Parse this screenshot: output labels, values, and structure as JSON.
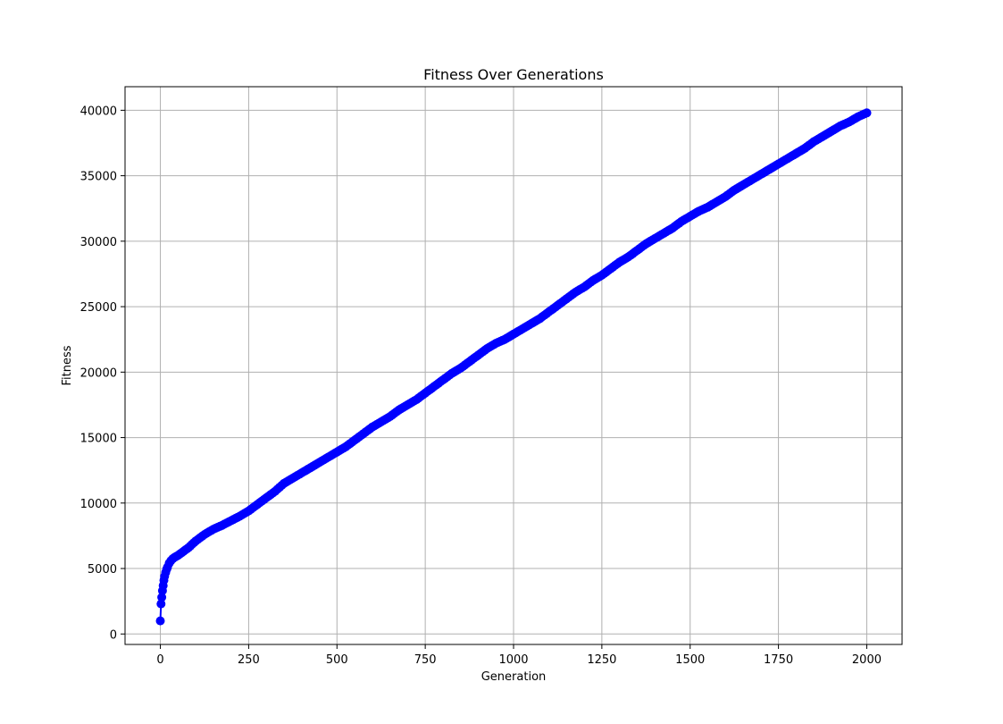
{
  "chart_data": {
    "type": "line",
    "title": "Fitness Over Generations",
    "xlabel": "Generation",
    "ylabel": "Fitness",
    "xlim": [
      -100,
      2100
    ],
    "ylim": [
      -800,
      41800
    ],
    "xticks": [
      0,
      250,
      500,
      750,
      1000,
      1250,
      1500,
      1750,
      2000
    ],
    "yticks": [
      0,
      5000,
      10000,
      15000,
      20000,
      25000,
      30000,
      35000,
      40000
    ],
    "grid": true,
    "marker": "circle",
    "series": [
      {
        "color": "#0000ff",
        "x": [
          0,
          2,
          4,
          6,
          8,
          10,
          12,
          15,
          18,
          20,
          25,
          30,
          35,
          40,
          50,
          60,
          70,
          80,
          90,
          100,
          125,
          150,
          175,
          200,
          225,
          250,
          275,
          300,
          325,
          350,
          375,
          400,
          425,
          450,
          475,
          500,
          525,
          550,
          575,
          600,
          625,
          650,
          675,
          700,
          725,
          750,
          775,
          800,
          825,
          850,
          875,
          900,
          925,
          950,
          975,
          1000,
          1025,
          1050,
          1075,
          1100,
          1125,
          1150,
          1175,
          1200,
          1225,
          1250,
          1275,
          1300,
          1325,
          1350,
          1375,
          1400,
          1425,
          1450,
          1475,
          1500,
          1525,
          1550,
          1575,
          1600,
          1625,
          1650,
          1675,
          1700,
          1725,
          1750,
          1775,
          1800,
          1825,
          1850,
          1875,
          1900,
          1925,
          1950,
          1975,
          2000
        ],
        "y": [
          1000,
          2300,
          2800,
          3300,
          3700,
          4100,
          4400,
          4700,
          4950,
          5100,
          5400,
          5600,
          5750,
          5850,
          6000,
          6200,
          6400,
          6600,
          6850,
          7100,
          7600,
          8000,
          8300,
          8650,
          9000,
          9400,
          9900,
          10400,
          10900,
          11500,
          11900,
          12300,
          12700,
          13100,
          13500,
          13900,
          14300,
          14800,
          15300,
          15800,
          16200,
          16600,
          17100,
          17500,
          17900,
          18400,
          18900,
          19400,
          19900,
          20300,
          20800,
          21300,
          21800,
          22200,
          22500,
          22900,
          23300,
          23700,
          24100,
          24600,
          25100,
          25600,
          26100,
          26500,
          27000,
          27400,
          27900,
          28400,
          28800,
          29300,
          29800,
          30200,
          30600,
          31000,
          31500,
          31900,
          32300,
          32600,
          33000,
          33400,
          33900,
          34300,
          34700,
          35100,
          35500,
          35900,
          36300,
          36700,
          37100,
          37600,
          38000,
          38400,
          38800,
          39100,
          39500,
          39800
        ]
      }
    ]
  }
}
